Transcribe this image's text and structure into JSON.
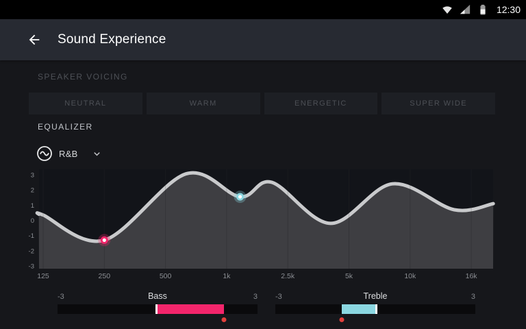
{
  "status_bar": {
    "time": "12:30"
  },
  "header": {
    "title": "Sound Experience"
  },
  "speaker_voicing": {
    "label": "SPEAKER VOICING",
    "options": [
      {
        "label": "NEUTRAL"
      },
      {
        "label": "WARM"
      },
      {
        "label": "ENERGETIC"
      },
      {
        "label": "SUPER WIDE"
      }
    ]
  },
  "equalizer": {
    "label": "EQUALIZER",
    "preset": {
      "value": "R&B"
    },
    "sliders": [
      {
        "name": "Bass",
        "min": -3,
        "max": 3,
        "min_label": "-3",
        "max_label": "3",
        "value": 2,
        "color": "#f3256b"
      },
      {
        "name": "Treble",
        "min": -3,
        "max": 3,
        "min_label": "-3",
        "max_label": "3",
        "value": -1,
        "color": "#8bd7e1"
      }
    ]
  },
  "chart_data": {
    "type": "area",
    "x_ticks": [
      "125",
      "250",
      "500",
      "1k",
      "2.5k",
      "5k",
      "10k",
      "16k"
    ],
    "x_tick_positions": [
      0,
      1,
      2,
      3,
      4,
      5,
      6,
      7
    ],
    "y_ticks": [
      "3",
      "2",
      "1",
      "0",
      "-1",
      "-2",
      "-3"
    ],
    "y_tick_values": [
      3,
      2,
      1,
      0,
      -1,
      -2,
      -3
    ],
    "ylim": [
      -3,
      3
    ],
    "xlim": [
      -0.07,
      7.36
    ],
    "grid": "vertical",
    "line_color": "#c9cacc",
    "fill_color": "#3e3e42",
    "points": [
      [
        -0.07,
        0.4
      ],
      [
        0,
        0.35
      ],
      [
        1,
        -1.3
      ],
      [
        2.33,
        3.05
      ],
      [
        3.22,
        1.55
      ],
      [
        3.74,
        2.5
      ],
      [
        4.7,
        -0.2
      ],
      [
        5.71,
        2.4
      ],
      [
        6.72,
        0.7
      ],
      [
        7.36,
        1.1
      ]
    ],
    "markers": [
      {
        "name": "bass-point",
        "x": 1,
        "y": -1.3,
        "color": "#f3256b"
      },
      {
        "name": "treble-point",
        "x": 3.22,
        "y": 1.55,
        "color": "#8bd7e1"
      }
    ]
  }
}
